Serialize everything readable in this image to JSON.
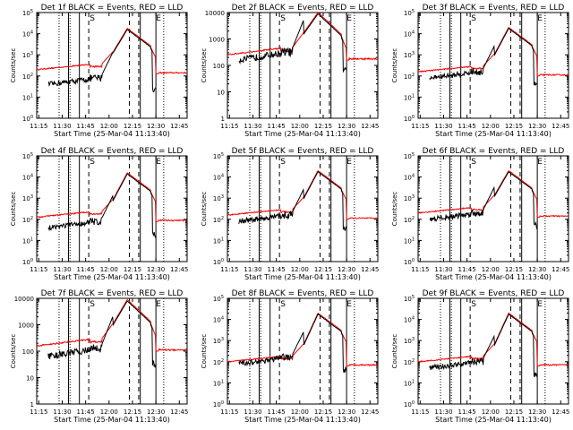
{
  "panels": [
    {
      "title": "Det 1f BLACK = Events, RED = LLD",
      "ymin_exp": 0,
      "ymax_exp": 5,
      "ytick_labels": [
        "10^0",
        "10^1",
        "10^2",
        "10^3",
        "10^4",
        "10^5"
      ],
      "red_start": 2.3,
      "red_peak": 4.25,
      "black_start": 1.6
    },
    {
      "title": "Det 2f BLACK = Events, RED = LLD",
      "ymin_exp": 0,
      "ymax_exp": 4,
      "ytick_labels": [
        "1",
        "10",
        "100",
        "1000",
        "10000"
      ],
      "red_start": 2.4,
      "red_peak": 4.0,
      "black_start": 2.2
    },
    {
      "title": "Det 3f BLACK = Events, RED = LLD",
      "ymin_exp": 0,
      "ymax_exp": 5,
      "ytick_labels": [
        "10^0",
        "10^1",
        "10^2",
        "10^3",
        "10^4",
        "10^5"
      ],
      "red_start": 2.2,
      "red_peak": 4.3,
      "black_start": 1.9
    },
    {
      "title": "Det 4f BLACK = Events, RED = LLD",
      "ymin_exp": 0,
      "ymax_exp": 5,
      "ytick_labels": [
        "10^0",
        "10^1",
        "10^2",
        "10^3",
        "10^4",
        "10^5"
      ],
      "red_start": 2.1,
      "red_peak": 4.2,
      "black_start": 1.6
    },
    {
      "title": "Det 5f BLACK = Events, RED = LLD",
      "ymin_exp": 0,
      "ymax_exp": 5,
      "ytick_labels": [
        "10^0",
        "10^1",
        "10^2",
        "10^3",
        "10^4",
        "10^5"
      ],
      "red_start": 2.2,
      "red_peak": 4.3,
      "black_start": 1.9
    },
    {
      "title": "Det 6f BLACK = Events, RED = LLD",
      "ymin_exp": 0,
      "ymax_exp": 5,
      "ytick_labels": [
        "10^0",
        "10^1",
        "10^2",
        "10^3",
        "10^4",
        "10^5"
      ],
      "red_start": 2.3,
      "red_peak": 4.3,
      "black_start": 2.0
    },
    {
      "title": "Det 7f BLACK = Events, RED = LLD",
      "ymin_exp": 0,
      "ymax_exp": 4,
      "ytick_labels": [
        "1",
        "10",
        "100",
        "1000",
        "10000"
      ],
      "red_start": 2.2,
      "red_peak": 3.95,
      "black_start": 1.8
    },
    {
      "title": "Det 8f BLACK = Events, RED = LLD",
      "ymin_exp": 0,
      "ymax_exp": 5,
      "ytick_labels": [
        "10^0",
        "10^1",
        "10^2",
        "10^3",
        "10^4",
        "10^5"
      ],
      "red_start": 2.0,
      "red_peak": 4.3,
      "black_start": 1.9
    },
    {
      "title": "Det 9f BLACK = Events, RED = LLD",
      "ymin_exp": 0,
      "ymax_exp": 5,
      "ytick_labels": [
        "10^0",
        "10^1",
        "10^2",
        "10^3",
        "10^4",
        "10^5"
      ],
      "red_start": 2.0,
      "red_peak": 4.3,
      "black_start": 1.7
    }
  ],
  "xtick_labels": [
    "11:15",
    "11:30",
    "11:45",
    "12:00",
    "12:15",
    "12:30",
    "12:45"
  ],
  "xlabel": "Start Time (25-Mar-04 11:13:40)",
  "ylabel": "Counts/sec",
  "annotations": {
    "S": "S",
    "E": "E"
  },
  "colors": {
    "events": "#000000",
    "lld": "#ff0000",
    "background": "#ffffff"
  },
  "chart_data": {
    "type": "line",
    "x_range": [
      "11:13:40",
      "12:50"
    ],
    "y_scale": "log",
    "series": [
      {
        "name": "Events",
        "color": "#000000"
      },
      {
        "name": "LLD",
        "color": "#ff0000"
      }
    ],
    "vertical_markers": {
      "dotted": [
        "11:28",
        "11:35",
        "12:35"
      ],
      "solid": [
        "11:34",
        "11:41",
        "12:20",
        "12:30"
      ],
      "dashed": [
        "11:47",
        "12:13",
        "12:19"
      ]
    },
    "xlabel": "Start Time (25-Mar-04 11:13:40)",
    "ylabel": "Counts/sec"
  }
}
